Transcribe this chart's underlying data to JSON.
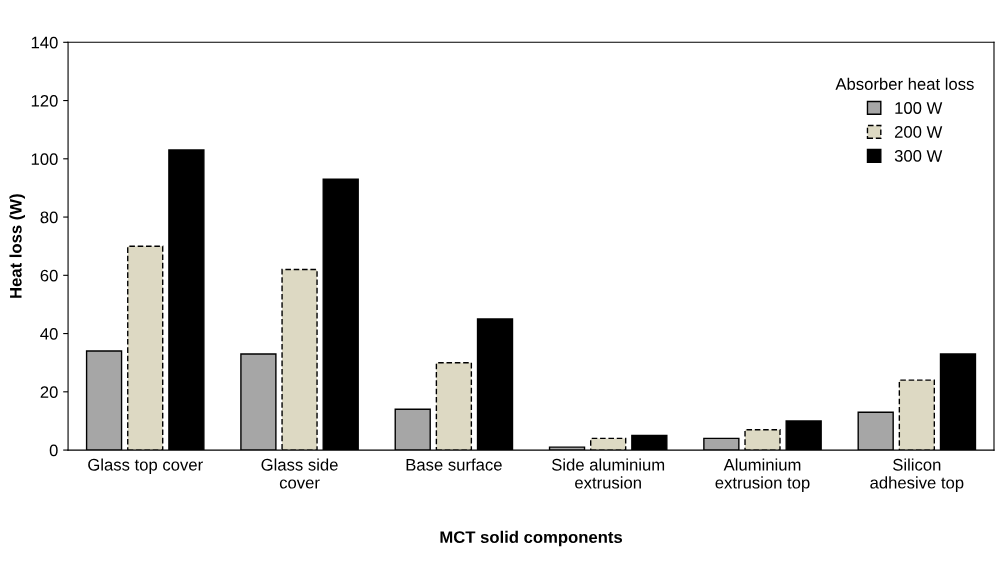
{
  "chart_data": {
    "type": "bar",
    "xlabel": "MCT solid components",
    "ylabel": "Heat loss (W)",
    "categories": [
      "Glass top cover",
      "Glass side\ncover",
      "Base surface",
      "Side aluminium\nextrusion",
      "Aluminium\nextrusion top",
      "Silicon\nadhesive top"
    ],
    "series": [
      {
        "name": "100 W",
        "color": "#a6a6a6",
        "line_style": "solid",
        "values": [
          34,
          33,
          14,
          1,
          4,
          13
        ]
      },
      {
        "name": "200 W",
        "color": "#ddd9c3",
        "line_style": "dashed",
        "values": [
          70,
          62,
          30,
          4,
          7,
          24
        ]
      },
      {
        "name": "300 W",
        "color": "#000000",
        "line_style": "solid",
        "values": [
          103,
          93,
          45,
          5,
          10,
          33
        ]
      }
    ],
    "ylim": [
      0,
      140
    ],
    "yticks": [
      0,
      20,
      40,
      60,
      80,
      100,
      120,
      140
    ],
    "grid": false,
    "legend": "top right",
    "legend_title": "Absorber heat loss"
  }
}
